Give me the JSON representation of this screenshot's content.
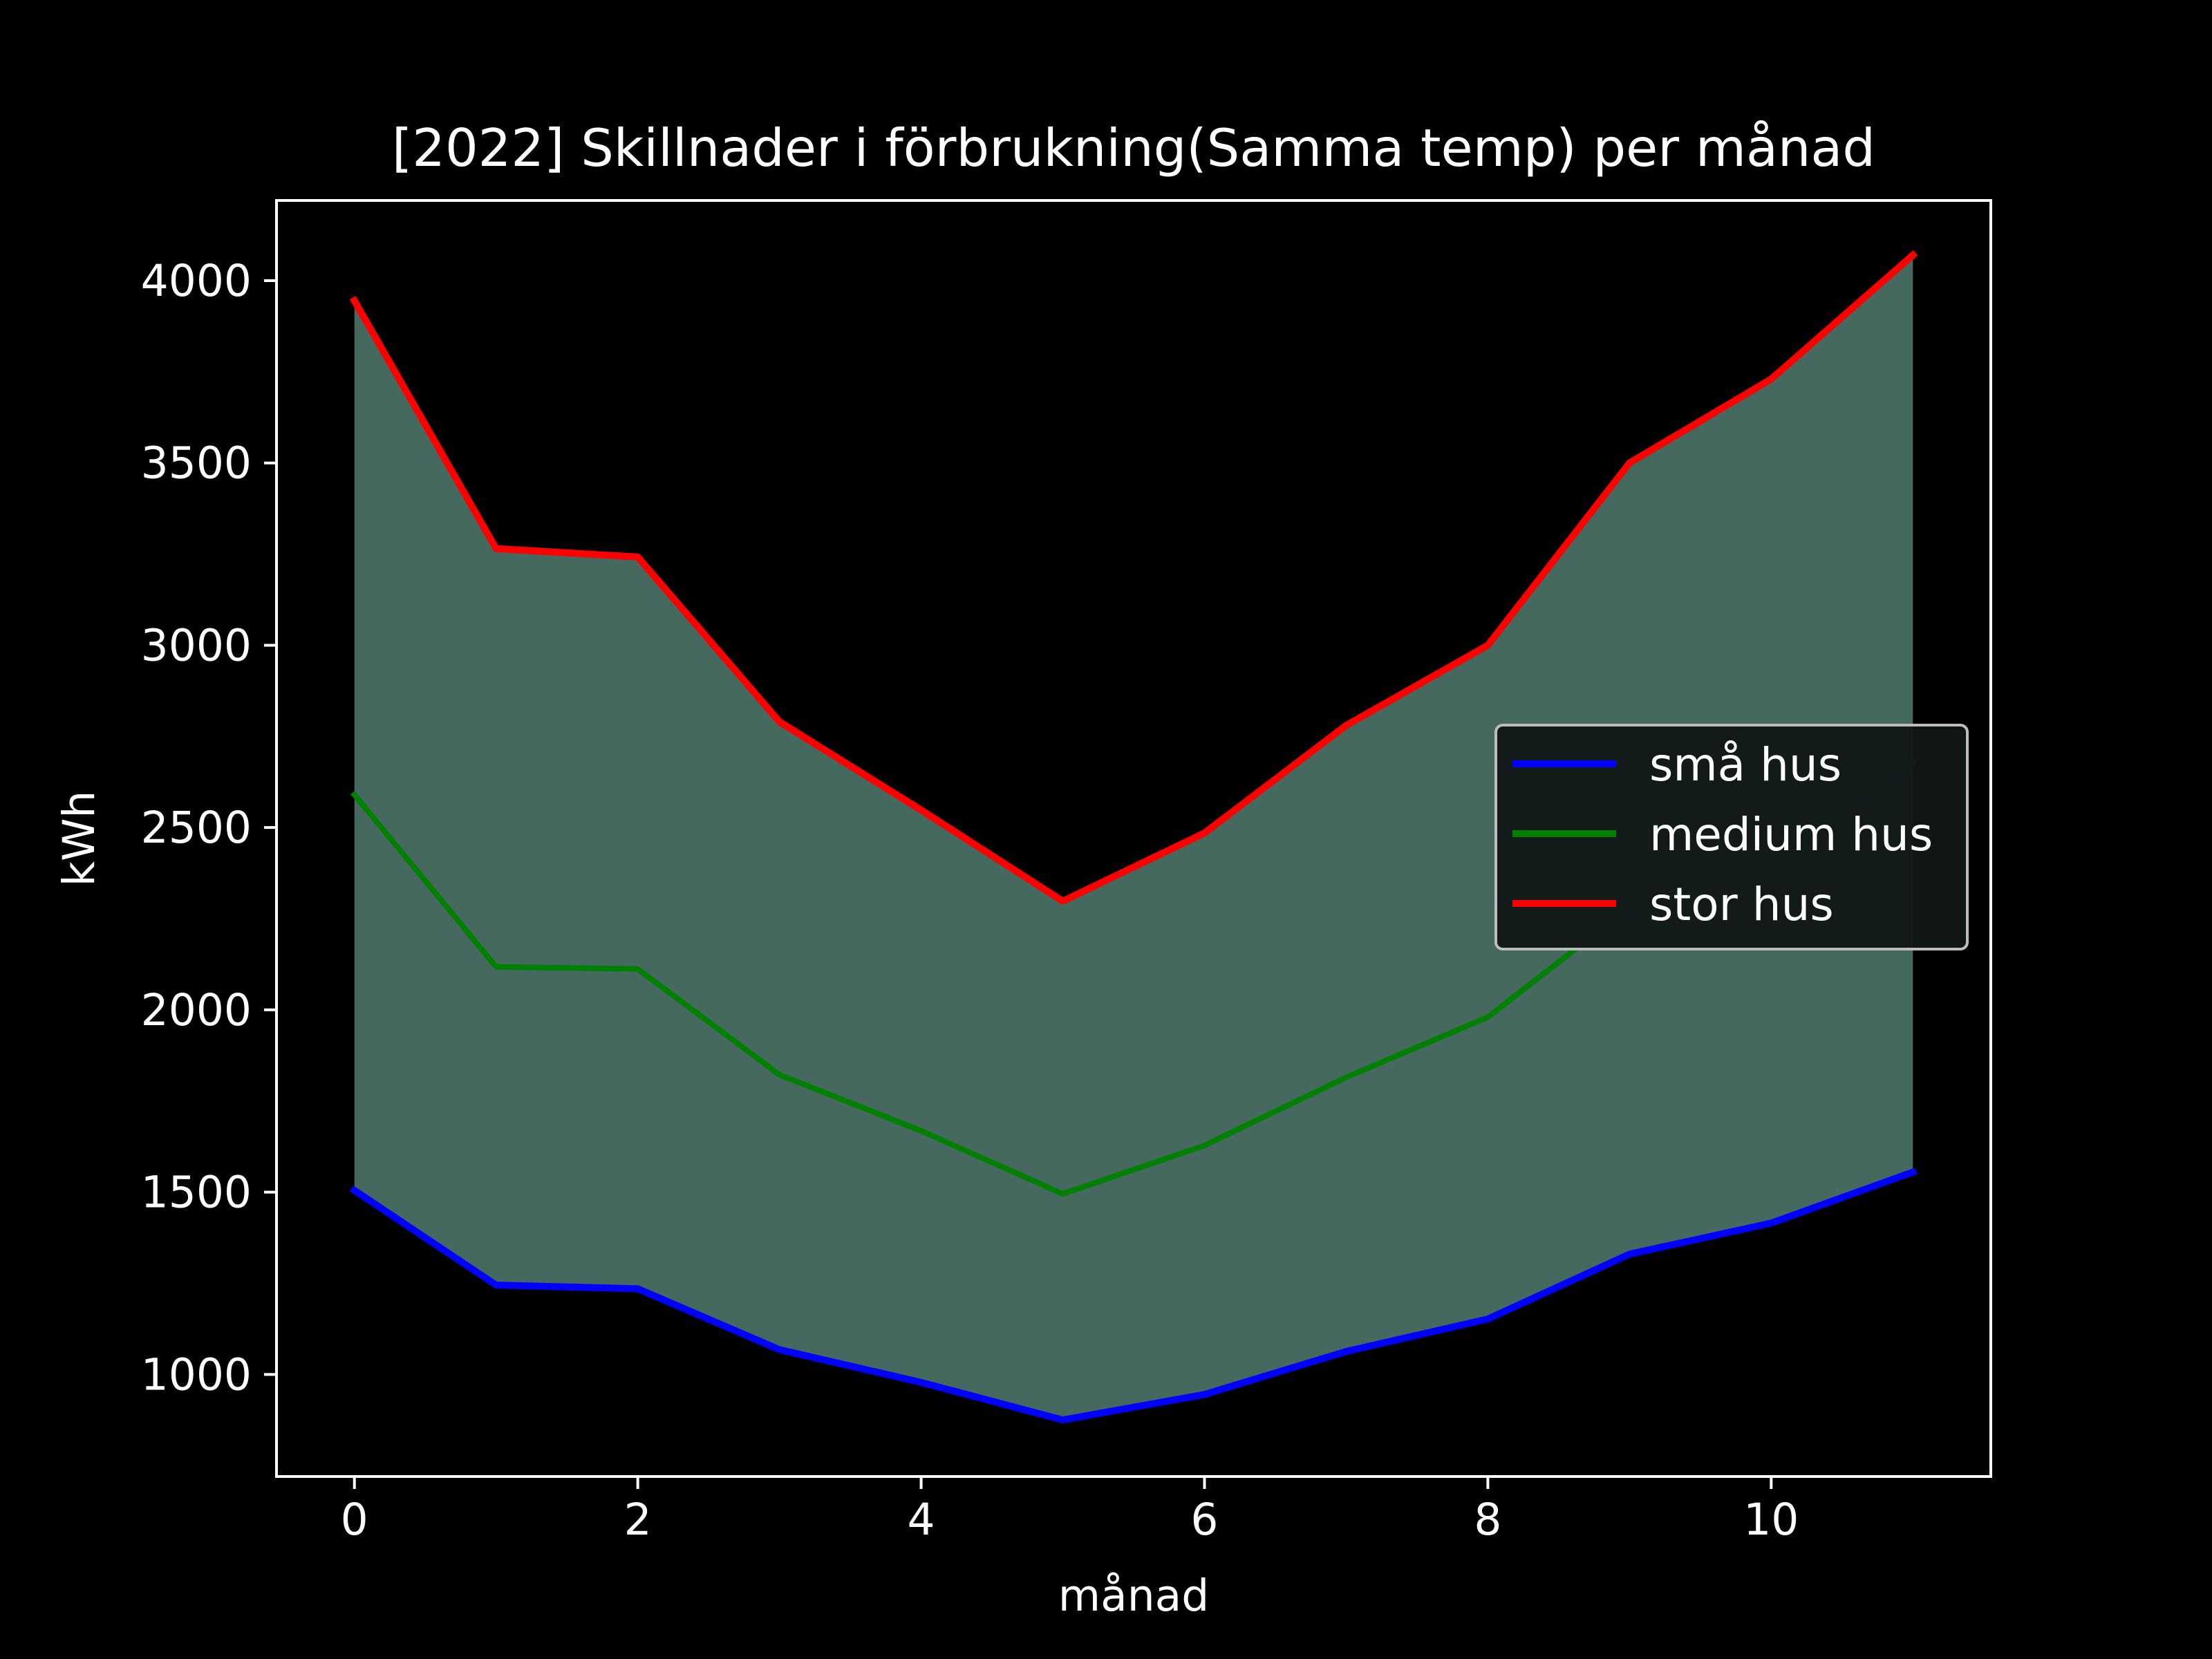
{
  "chart_data": {
    "type": "line",
    "title": "[2022] Skillnader i förbrukning(Samma temp) per månad",
    "xlabel": "månad",
    "ylabel": "kWh",
    "xlim": [
      -0.55,
      11.55
    ],
    "ylim": [
      720,
      4220
    ],
    "x_ticks": [
      0,
      2,
      4,
      6,
      8,
      10
    ],
    "x_tick_labels": [
      "0",
      "2",
      "4",
      "6",
      "8",
      "10"
    ],
    "y_ticks": [
      1000,
      1500,
      2000,
      2500,
      3000,
      3500,
      4000
    ],
    "y_tick_labels": [
      "1000",
      "1500",
      "2000",
      "2500",
      "3000",
      "3500",
      "4000"
    ],
    "grid": false,
    "legend_position": "center-right",
    "x": [
      0,
      1,
      2,
      3,
      4,
      5,
      6,
      7,
      8,
      9,
      10,
      11
    ],
    "series": [
      {
        "name": "små hus",
        "color": "#0000ff",
        "values": [
          1505,
          1245,
          1235,
          1068,
          978,
          875,
          945,
          1063,
          1152,
          1330,
          1415,
          1555
        ]
      },
      {
        "name": "medium hus",
        "color": "#008000",
        "values": [
          2590,
          2118,
          2112,
          1822,
          1668,
          1495,
          1628,
          1815,
          1980,
          2282,
          2415,
          2678
        ]
      },
      {
        "name": "stor hus",
        "color": "#ff0000",
        "values": [
          3945,
          3265,
          3242,
          2790,
          2548,
          2298,
          2485,
          2780,
          3000,
          3500,
          3730,
          4070
        ]
      }
    ],
    "fill_between": {
      "from_series": "små hus",
      "to_series": "stor hus",
      "color": "#46695f"
    },
    "background": "#000000",
    "foreground": "#ffffff"
  }
}
